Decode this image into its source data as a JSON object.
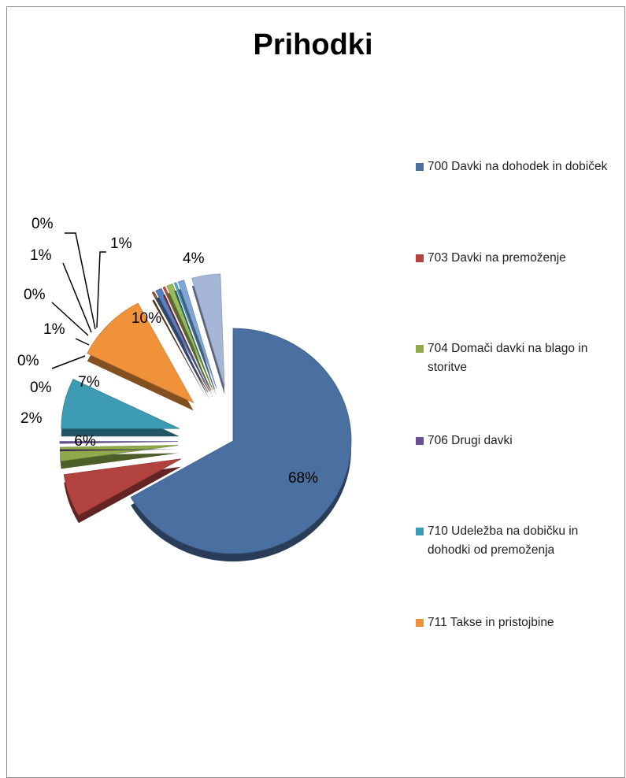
{
  "chart_data": {
    "type": "pie",
    "title": "Prihodki",
    "slices": [
      {
        "name": "700 Davki na dohodek in dobiček",
        "value": 68,
        "label": "68%",
        "color": "#4a6fa1"
      },
      {
        "name": "703 Davki na premoženje",
        "value": 6,
        "label": "6%",
        "color": "#b2433f"
      },
      {
        "name": "704 Domači davki na blago in storitve",
        "value": 2,
        "label": "2%",
        "color": "#8eaa4b"
      },
      {
        "name": "706 Drugi davki",
        "value": 0,
        "label": "0%",
        "color": "#6b4f94"
      },
      {
        "name": "710 Udeležba na dobičku in dohodki od premoženja",
        "value": 7,
        "label": "7%",
        "color": "#3d9bb4"
      },
      {
        "name": "711 Takse in pristojbine",
        "value": 10,
        "label": "10%",
        "color": "#f0923a"
      },
      {
        "value": 0,
        "label": "0%",
        "color": "#8a5a2b"
      },
      {
        "value": 1,
        "label": "1%",
        "color": "#5b7fc4"
      },
      {
        "value": 0,
        "label": "0%",
        "color": "#c0504d"
      },
      {
        "value": 1,
        "label": "1%",
        "color": "#9bbb59"
      },
      {
        "value": 0,
        "label": "0%",
        "color": "#4bacc6"
      },
      {
        "value": 1,
        "label": "1%",
        "color": "#7ea6d8"
      },
      {
        "value": 4,
        "label": "4%",
        "color": "#a5b6d6"
      }
    ],
    "legend_position": "right"
  }
}
